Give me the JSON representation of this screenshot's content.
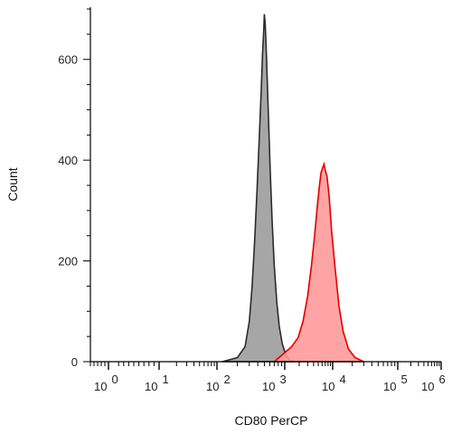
{
  "chart_data": {
    "type": "area",
    "title": "",
    "xlabel": "CD80 PerCP",
    "ylabel": "Count",
    "x_scale": "log",
    "xlim": [
      -1000,
      1000000
    ],
    "ylim": [
      0,
      700
    ],
    "y_ticks": [
      0,
      200,
      400,
      600
    ],
    "y_tick_labels": [
      "0",
      "200",
      "400",
      "600"
    ],
    "x_tick_labels": [
      {
        "base": "10",
        "exp": "0"
      },
      {
        "base": "10",
        "exp": "1"
      },
      {
        "base": "10",
        "exp": "2"
      },
      {
        "base": "10",
        "exp": "3"
      },
      {
        "base": "10",
        "exp": "4"
      },
      {
        "base": "10",
        "exp": "5"
      },
      {
        "base": "10",
        "exp": "6"
      }
    ],
    "grid": false,
    "legend": "none",
    "series": [
      {
        "fill": "#a6a6a6",
        "stroke": "#2b2b2b",
        "points": [
          [
            120,
            0
          ],
          [
            200,
            8
          ],
          [
            260,
            30
          ],
          [
            300,
            80
          ],
          [
            330,
            150
          ],
          [
            360,
            240
          ],
          [
            390,
            340
          ],
          [
            420,
            440
          ],
          [
            450,
            540
          ],
          [
            470,
            610
          ],
          [
            490,
            660
          ],
          [
            500,
            690
          ],
          [
            515,
            670
          ],
          [
            540,
            600
          ],
          [
            570,
            500
          ],
          [
            610,
            380
          ],
          [
            650,
            280
          ],
          [
            700,
            190
          ],
          [
            760,
            120
          ],
          [
            830,
            70
          ],
          [
            920,
            35
          ],
          [
            1050,
            14
          ],
          [
            1250,
            4
          ],
          [
            1600,
            0
          ]
        ]
      },
      {
        "fill": "#ff9a9a",
        "stroke": "#e00000",
        "points": [
          [
            700,
            0
          ],
          [
            1000,
            18
          ],
          [
            1400,
            30
          ],
          [
            1900,
            48
          ],
          [
            2400,
            80
          ],
          [
            3000,
            130
          ],
          [
            3600,
            190
          ],
          [
            4200,
            250
          ],
          [
            4800,
            310
          ],
          [
            5300,
            350
          ],
          [
            5700,
            375
          ],
          [
            6200,
            385
          ],
          [
            6600,
            392
          ],
          [
            7000,
            380
          ],
          [
            7600,
            368
          ],
          [
            8400,
            330
          ],
          [
            9500,
            260
          ],
          [
            11000,
            180
          ],
          [
            12500,
            110
          ],
          [
            14500,
            60
          ],
          [
            17500,
            25
          ],
          [
            22000,
            8
          ],
          [
            30000,
            0
          ]
        ]
      }
    ]
  }
}
